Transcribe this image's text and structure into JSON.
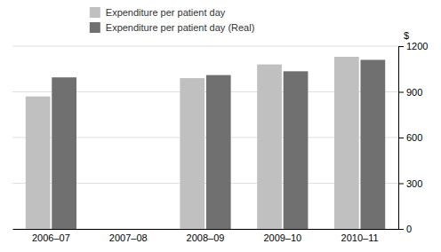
{
  "chart_data": {
    "type": "bar",
    "categories": [
      "2006–07",
      "2007–08",
      "2008–09",
      "2009–10",
      "2010–11"
    ],
    "series": [
      {
        "name": "Expenditure per patient day",
        "color": "#c0c0c0",
        "values": [
          870,
          0,
          990,
          1080,
          1130
        ]
      },
      {
        "name": "Expenditure per patient day (Real)",
        "color": "#707070",
        "values": [
          995,
          0,
          1010,
          1035,
          1110
        ]
      }
    ],
    "ylabel": "$",
    "ylim": [
      0,
      1200
    ],
    "yticks": [
      0,
      300,
      600,
      900,
      1200
    ],
    "grid": true,
    "legend": "upper left"
  }
}
